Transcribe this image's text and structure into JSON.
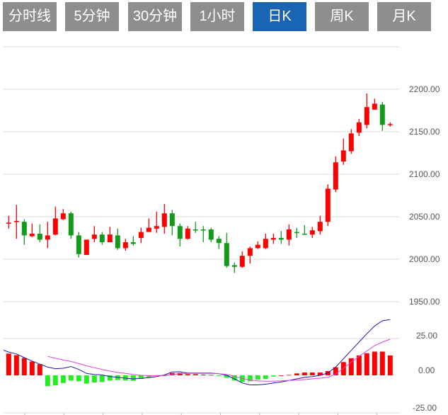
{
  "tabs": [
    {
      "label": "分时线",
      "active": false
    },
    {
      "label": "5分钟",
      "active": false
    },
    {
      "label": "30分钟",
      "active": false
    },
    {
      "label": "1小时",
      "active": false
    },
    {
      "label": "日K",
      "active": true
    },
    {
      "label": "周K",
      "active": false
    },
    {
      "label": "月K",
      "active": false
    }
  ],
  "colors": {
    "up": "#ff0000",
    "down": "#139a1b",
    "macd_up": "#ff0000",
    "macd_down": "#22ee22",
    "dif": "#1a1aaa",
    "dea": "#e040e0",
    "tab": "#8e8e8e",
    "tab_active": "#1a64b4"
  },
  "chart_data": [
    {
      "type": "candlestick",
      "title": "",
      "ylim": [
        1950,
        2250
      ],
      "y_ticks": [
        "2200.00",
        "2150.00",
        "2100.00",
        "2050.00",
        "2000.00",
        "1950.00"
      ],
      "y_tick_values": [
        2200,
        2150,
        2100,
        2050,
        2000,
        1950
      ],
      "grid": true,
      "ohlc": [
        [
          2042,
          2051,
          2036,
          2043
        ],
        [
          2044,
          2064,
          2024,
          2045
        ],
        [
          2044,
          2047,
          2017,
          2028
        ],
        [
          2027,
          2042,
          2026,
          2030
        ],
        [
          2030,
          2041,
          2020,
          2023
        ],
        [
          2023,
          2044,
          2013,
          2028
        ],
        [
          2029,
          2062,
          2028,
          2048
        ],
        [
          2047,
          2059,
          2046,
          2054
        ],
        [
          2054,
          2056,
          2024,
          2028
        ],
        [
          2028,
          2032,
          2002,
          2006
        ],
        [
          2005,
          2023,
          2005,
          2023
        ],
        [
          2024,
          2039,
          2020,
          2029
        ],
        [
          2029,
          2032,
          2017,
          2020
        ],
        [
          2020,
          2038,
          2020,
          2029
        ],
        [
          2028,
          2036,
          2011,
          2013
        ],
        [
          2013,
          2024,
          2010,
          2020
        ],
        [
          2020,
          2027,
          2016,
          2018
        ],
        [
          2025,
          2037,
          2019,
          2032
        ],
        [
          2032,
          2048,
          2032,
          2037
        ],
        [
          2036,
          2056,
          2031,
          2039
        ],
        [
          2038,
          2065,
          2030,
          2054
        ],
        [
          2054,
          2058,
          2028,
          2039
        ],
        [
          2039,
          2042,
          2015,
          2024
        ],
        [
          2024,
          2039,
          2023,
          2036
        ],
        [
          2035,
          2044,
          2031,
          2034
        ],
        [
          2035,
          2039,
          2020,
          2034
        ],
        [
          2035,
          2037,
          2020,
          2023
        ],
        [
          2024,
          2027,
          2012,
          2019
        ],
        [
          2019,
          2031,
          1990,
          1992
        ],
        [
          1993,
          1996,
          1984,
          1991
        ],
        [
          1991,
          2009,
          1990,
          2004
        ],
        [
          2004,
          2015,
          1995,
          2013
        ],
        [
          2013,
          2021,
          2012,
          2017
        ],
        [
          2013,
          2030,
          2012,
          2024
        ],
        [
          2023,
          2030,
          2018,
          2025
        ],
        [
          2025,
          2033,
          2018,
          2023
        ],
        [
          2023,
          2041,
          2016,
          2035
        ],
        [
          2032,
          2037,
          2025,
          2031
        ],
        [
          2030,
          2040,
          2029,
          2029
        ],
        [
          2029,
          2038,
          2025,
          2034
        ],
        [
          2033,
          2051,
          2029,
          2044
        ],
        [
          2044,
          2088,
          2039,
          2083
        ],
        [
          2082,
          2121,
          2079,
          2114
        ],
        [
          2115,
          2142,
          2111,
          2128
        ],
        [
          2127,
          2153,
          2124,
          2148
        ],
        [
          2149,
          2165,
          2145,
          2161
        ],
        [
          2158,
          2195,
          2154,
          2179
        ],
        [
          2176,
          2189,
          2176,
          2183
        ],
        [
          2182,
          2185,
          2151,
          2158
        ],
        [
          2158,
          2161,
          2156,
          2159
        ]
      ]
    },
    {
      "type": "bar+line",
      "title": "MACD",
      "ylim": [
        -25,
        40
      ],
      "y_ticks": [
        "25.00",
        "0.00",
        "-25.00"
      ],
      "y_tick_values": [
        25,
        0,
        -25
      ],
      "macd": [
        14.8,
        13.7,
        11.8,
        9.4,
        7.6,
        -7.3,
        -6.8,
        -5.2,
        -3.5,
        -4,
        -5.6,
        -4.8,
        -4.5,
        -3.5,
        -3.2,
        -3.5,
        -3.7,
        -2.4,
        -1.3,
        -0.3,
        0,
        1.6,
        1.6,
        0.8,
        0.8,
        0.5,
        0.3,
        -0.5,
        -1.6,
        -3.5,
        -4.5,
        -4,
        -2.9,
        -2.4,
        -0.8,
        0,
        0.3,
        1.3,
        1.9,
        1.9,
        1.9,
        2.9,
        5.5,
        9,
        11.6,
        13.5,
        15,
        16.1,
        16.1,
        13.5
      ],
      "series": [
        {
          "name": "DIF",
          "values": [
            15.8,
            14.5,
            12,
            9.7,
            7.6,
            5.6,
            4.5,
            4.8,
            6,
            4,
            1.3,
            0.6,
            0.3,
            -0.8,
            -1.3,
            -1.9,
            -2.4,
            -2.1,
            -1.6,
            -0.8,
            0.3,
            2.3,
            2.4,
            1.6,
            1.6,
            1.6,
            1.6,
            1.1,
            0,
            -2.4,
            -5.2,
            -6.5,
            -6.5,
            -6,
            -5.2,
            -4.5,
            -3.5,
            -2.4,
            -1.3,
            -0.8,
            0,
            1.6,
            5.6,
            11.3,
            16.9,
            22.6,
            28.2,
            33.5,
            37,
            37.9
          ]
        },
        {
          "name": "DEA",
          "values": [
            null,
            null,
            null,
            null,
            null,
            12.9,
            11.6,
            10.5,
            9.4,
            8,
            6.5,
            5.2,
            4,
            2.9,
            1.9,
            1.3,
            0.6,
            0,
            -0.2,
            -0.2,
            0,
            0.6,
            1.1,
            1.3,
            1.3,
            1.3,
            1.3,
            1.1,
            0.6,
            -0.6,
            -2.1,
            -3.2,
            -3.7,
            -4,
            -4,
            -3.7,
            -3.5,
            -3.2,
            -2.9,
            -2.4,
            -1.9,
            -1.3,
            0.8,
            4.8,
            8.9,
            12.9,
            16.5,
            20.2,
            22.6,
            24.5
          ]
        }
      ]
    }
  ]
}
